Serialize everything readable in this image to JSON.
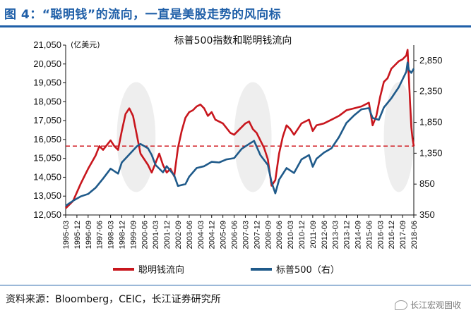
{
  "header": {
    "figure_title": "图 4：“聪明钱”的流向，一直是美股走势的风向标"
  },
  "footer": {
    "source": "资料来源：Bloomberg，CEIC，长江证券研究所",
    "watermark": "长江宏观固收",
    "watermark_icon": "wechat-icon"
  },
  "colors": {
    "accent": "#1f5fa8",
    "smart_money": "#c8161d",
    "spx": "#1f5a8a",
    "reference_line": "#d0161c",
    "highlight": "#d9d9d9"
  },
  "chart_data": {
    "type": "line",
    "title": "标普500指数和聪明钱流向",
    "unit_label": "(亿美元)",
    "left_axis": {
      "ylim": [
        12050,
        21050
      ],
      "ticks": [
        "21,050",
        "20,050",
        "19,050",
        "18,050",
        "17,050",
        "16,050",
        "15,050",
        "14,050",
        "13,050",
        "12,050"
      ]
    },
    "right_axis": {
      "ylim": [
        350,
        3100
      ],
      "ticks": [
        "2,850",
        "2,350",
        "1,850",
        "1,350",
        "850",
        "350"
      ]
    },
    "x_ticks": [
      "1995-03",
      "1995-12",
      "1996-09",
      "1997-06",
      "1998-03",
      "1998-12",
      "1999-09",
      "2000-06",
      "2001-03",
      "2001-12",
      "2002-09",
      "2003-06",
      "2004-03",
      "2004-12",
      "2005-09",
      "2006-06",
      "2007-03",
      "2007-12",
      "2008-09",
      "2009-06",
      "2010-03",
      "2010-12",
      "2011-09",
      "2012-06",
      "2013-03",
      "2013-12",
      "2014-09",
      "2015-06",
      "2016-03",
      "2016-12",
      "2017-09",
      "2018-06"
    ],
    "x_range": [
      "1995-03",
      "2018-06"
    ],
    "reference_line": {
      "axis": "left",
      "value": 15700,
      "style": "dashed"
    },
    "highlight_periods": [
      {
        "from": "1998-08",
        "to": "2001-03"
      },
      {
        "from": "2006-06",
        "to": "2008-12"
      },
      {
        "from": "2016-06",
        "to": "2018-06"
      }
    ],
    "series": [
      {
        "name": "聪明钱流向",
        "axis": "left",
        "points": [
          [
            "1995-03",
            12400
          ],
          [
            "1995-09",
            12800
          ],
          [
            "1996-03",
            13700
          ],
          [
            "1996-09",
            14500
          ],
          [
            "1997-03",
            15200
          ],
          [
            "1997-06",
            15700
          ],
          [
            "1997-09",
            15500
          ],
          [
            "1998-03",
            16000
          ],
          [
            "1998-06",
            15700
          ],
          [
            "1998-09",
            15500
          ],
          [
            "1998-12",
            16500
          ],
          [
            "1999-03",
            17400
          ],
          [
            "1999-06",
            17700
          ],
          [
            "1999-09",
            17300
          ],
          [
            "1999-12",
            16300
          ],
          [
            "2000-03",
            15300
          ],
          [
            "2000-06",
            15000
          ],
          [
            "2000-09",
            14700
          ],
          [
            "2000-12",
            14300
          ],
          [
            "2001-03",
            14800
          ],
          [
            "2001-06",
            15300
          ],
          [
            "2001-09",
            14700
          ],
          [
            "2001-12",
            14300
          ],
          [
            "2002-03",
            14500
          ],
          [
            "2002-06",
            14100
          ],
          [
            "2002-09",
            15600
          ],
          [
            "2002-12",
            16500
          ],
          [
            "2003-03",
            17200
          ],
          [
            "2003-06",
            17500
          ],
          [
            "2003-09",
            17600
          ],
          [
            "2003-12",
            17800
          ],
          [
            "2004-03",
            17900
          ],
          [
            "2004-06",
            17700
          ],
          [
            "2004-09",
            17300
          ],
          [
            "2004-12",
            17500
          ],
          [
            "2005-03",
            17100
          ],
          [
            "2005-09",
            16900
          ],
          [
            "2006-03",
            16400
          ],
          [
            "2006-06",
            16300
          ],
          [
            "2006-09",
            16500
          ],
          [
            "2007-03",
            16900
          ],
          [
            "2007-06",
            17000
          ],
          [
            "2007-09",
            16600
          ],
          [
            "2007-12",
            16400
          ],
          [
            "2008-03",
            16000
          ],
          [
            "2008-06",
            15600
          ],
          [
            "2008-09",
            15000
          ],
          [
            "2008-12",
            13600
          ],
          [
            "2009-03",
            13900
          ],
          [
            "2009-06",
            15300
          ],
          [
            "2009-09",
            16200
          ],
          [
            "2009-12",
            16800
          ],
          [
            "2010-03",
            16600
          ],
          [
            "2010-06",
            16300
          ],
          [
            "2010-09",
            16600
          ],
          [
            "2010-12",
            16900
          ],
          [
            "2011-03",
            17000
          ],
          [
            "2011-06",
            17100
          ],
          [
            "2011-09",
            16500
          ],
          [
            "2011-12",
            16800
          ],
          [
            "2012-06",
            16900
          ],
          [
            "2012-12",
            17100
          ],
          [
            "2013-06",
            17300
          ],
          [
            "2013-12",
            17600
          ],
          [
            "2014-06",
            17700
          ],
          [
            "2014-12",
            17800
          ],
          [
            "2015-06",
            18000
          ],
          [
            "2015-09",
            16800
          ],
          [
            "2015-12",
            17300
          ],
          [
            "2016-03",
            18300
          ],
          [
            "2016-06",
            19100
          ],
          [
            "2016-09",
            19300
          ],
          [
            "2016-12",
            19800
          ],
          [
            "2017-03",
            20000
          ],
          [
            "2017-06",
            20200
          ],
          [
            "2017-09",
            20300
          ],
          [
            "2017-12",
            20500
          ],
          [
            "2018-01",
            20800
          ],
          [
            "2018-02",
            19400
          ],
          [
            "2018-03",
            18000
          ],
          [
            "2018-04",
            16700
          ],
          [
            "2018-05",
            16100
          ],
          [
            "2018-06",
            15700
          ]
        ]
      },
      {
        "name": "标普500（右）",
        "axis": "right",
        "points": [
          [
            "1995-03",
            500
          ],
          [
            "1995-09",
            580
          ],
          [
            "1996-03",
            650
          ],
          [
            "1996-09",
            690
          ],
          [
            "1997-03",
            790
          ],
          [
            "1997-09",
            940
          ],
          [
            "1998-03",
            1100
          ],
          [
            "1998-09",
            1020
          ],
          [
            "1998-12",
            1200
          ],
          [
            "1999-06",
            1330
          ],
          [
            "1999-12",
            1460
          ],
          [
            "2000-03",
            1500
          ],
          [
            "2000-09",
            1430
          ],
          [
            "2000-12",
            1320
          ],
          [
            "2001-03",
            1160
          ],
          [
            "2001-09",
            1040
          ],
          [
            "2001-12",
            1140
          ],
          [
            "2002-06",
            990
          ],
          [
            "2002-09",
            820
          ],
          [
            "2003-03",
            850
          ],
          [
            "2003-06",
            970
          ],
          [
            "2003-12",
            1110
          ],
          [
            "2004-06",
            1140
          ],
          [
            "2004-12",
            1210
          ],
          [
            "2005-06",
            1200
          ],
          [
            "2005-12",
            1250
          ],
          [
            "2006-06",
            1270
          ],
          [
            "2006-12",
            1420
          ],
          [
            "2007-06",
            1500
          ],
          [
            "2007-10",
            1550
          ],
          [
            "2008-03",
            1320
          ],
          [
            "2008-09",
            1160
          ],
          [
            "2008-12",
            880
          ],
          [
            "2009-03",
            700
          ],
          [
            "2009-06",
            920
          ],
          [
            "2009-12",
            1110
          ],
          [
            "2010-06",
            1030
          ],
          [
            "2010-12",
            1250
          ],
          [
            "2011-06",
            1320
          ],
          [
            "2011-09",
            1130
          ],
          [
            "2011-12",
            1260
          ],
          [
            "2012-06",
            1360
          ],
          [
            "2012-12",
            1430
          ],
          [
            "2013-06",
            1610
          ],
          [
            "2013-12",
            1840
          ],
          [
            "2014-06",
            1960
          ],
          [
            "2014-12",
            2060
          ],
          [
            "2015-06",
            2080
          ],
          [
            "2015-09",
            1920
          ],
          [
            "2016-02",
            1890
          ],
          [
            "2016-06",
            2090
          ],
          [
            "2016-12",
            2240
          ],
          [
            "2017-06",
            2420
          ],
          [
            "2017-12",
            2670
          ],
          [
            "2018-01",
            2820
          ],
          [
            "2018-02",
            2700
          ],
          [
            "2018-04",
            2650
          ],
          [
            "2018-06",
            2720
          ]
        ]
      }
    ]
  }
}
